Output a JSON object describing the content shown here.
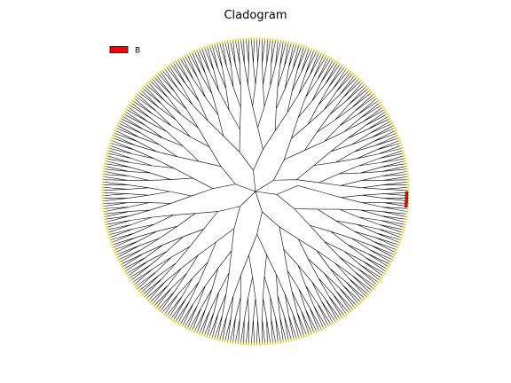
{
  "chart_data": {
    "type": "cladogram",
    "layout": "circular",
    "title": "Cladogram",
    "leaf_count": 360,
    "highlighted_clade": {
      "name": "B",
      "angle_start_deg": -6,
      "angle_end_deg": 0
    },
    "legend": [
      {
        "label": "B",
        "color": "#ff0000"
      }
    ],
    "legend_position": "top-left",
    "colors": {
      "branch": "#000000",
      "leaf_marker": "#c8c800",
      "clade_highlight": "#ff0000"
    }
  }
}
